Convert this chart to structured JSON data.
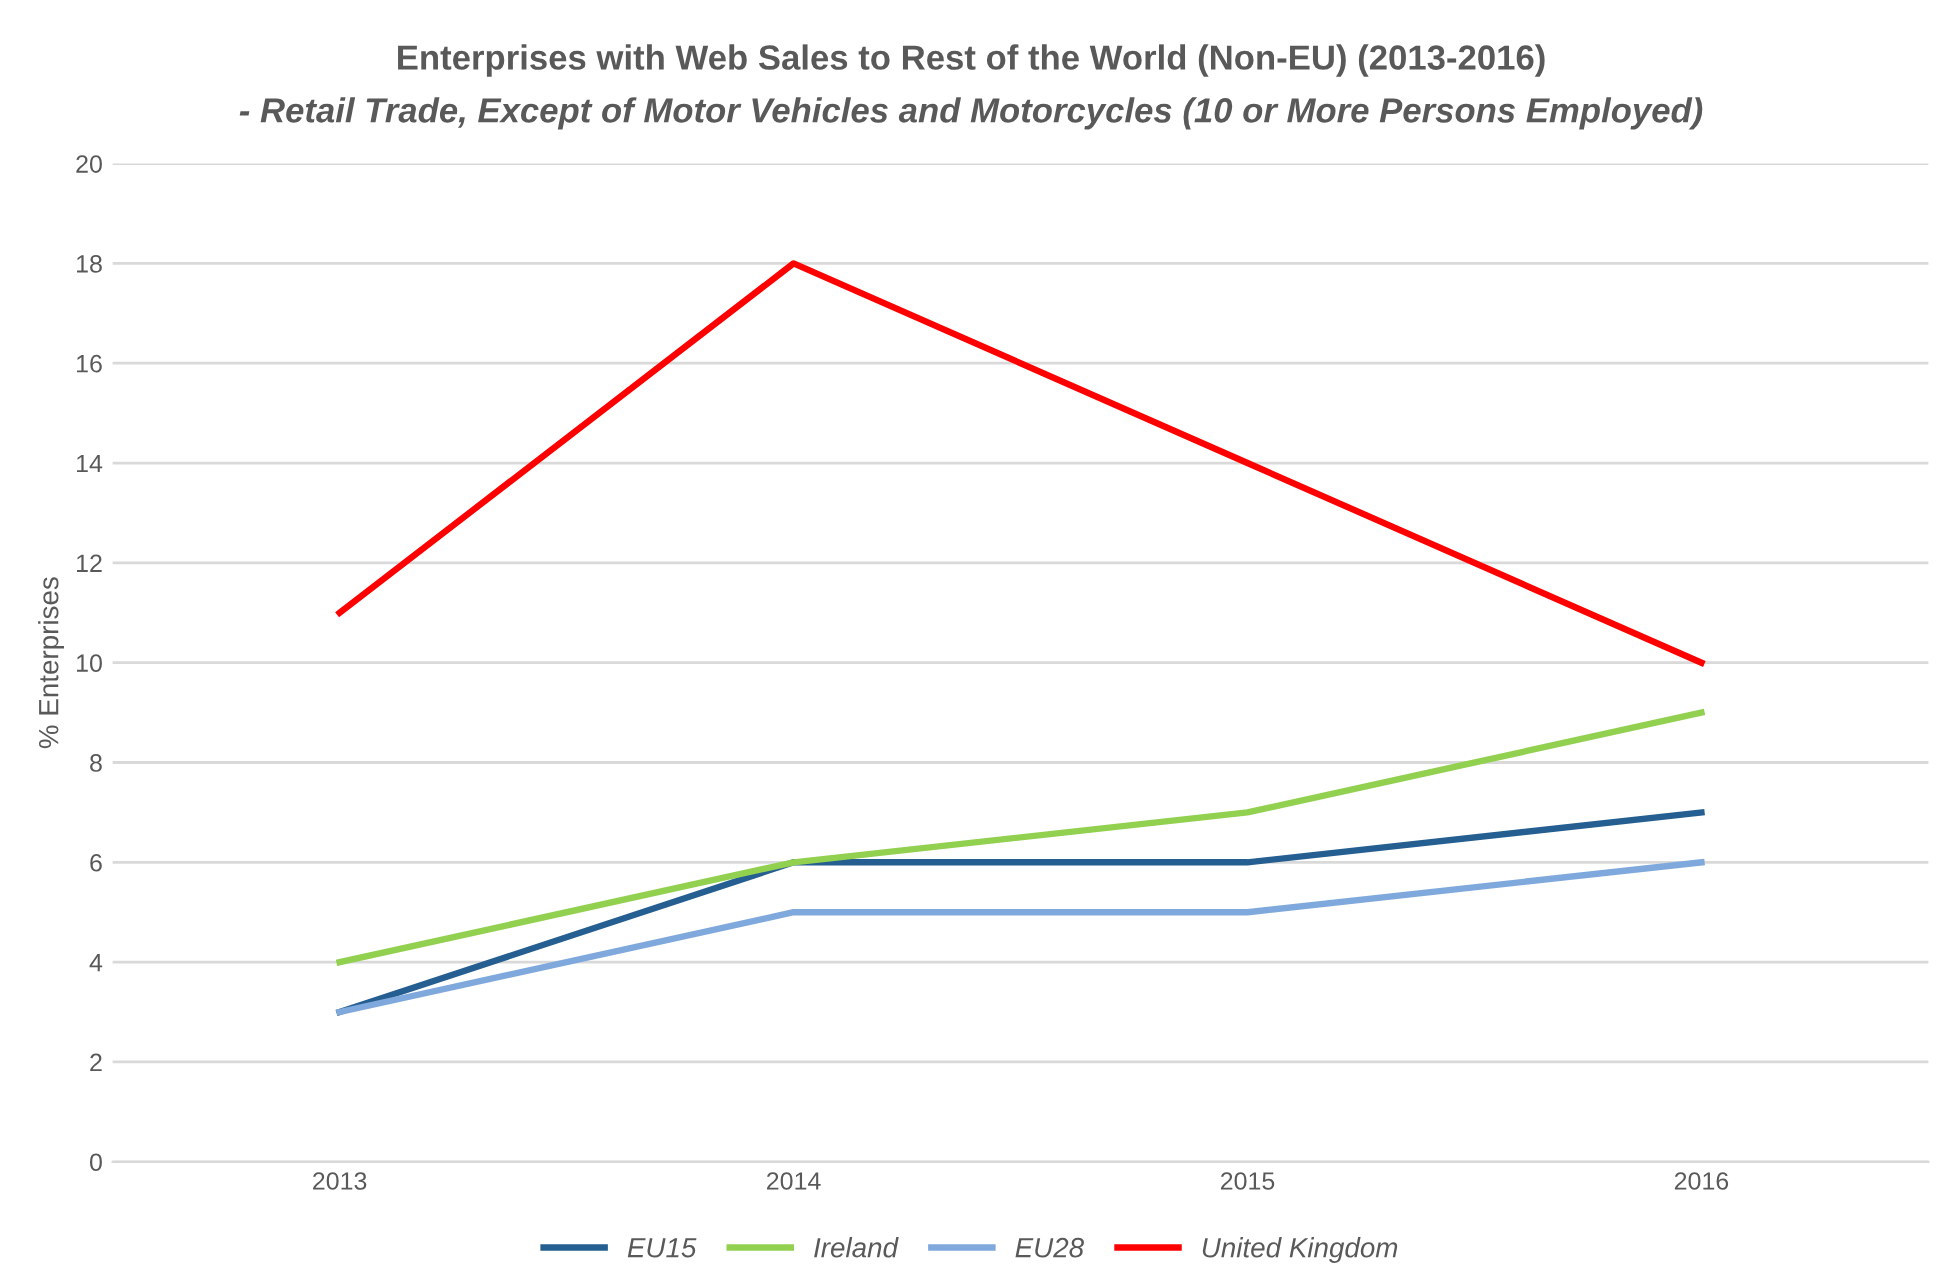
{
  "chart_data": {
    "type": "line",
    "title": "Enterprises with Web Sales to Rest of the World (Non-EU) (2013-2016)",
    "subtitle": "- Retail Trade, Except of Motor Vehicles and Motorcycles (10 or More Persons Employed)",
    "ylabel": "% Enterprises",
    "categories": [
      "2013",
      "2014",
      "2015",
      "2016"
    ],
    "series": [
      {
        "name": "EU15",
        "color": "#255e91",
        "values": [
          3,
          6,
          6,
          7
        ]
      },
      {
        "name": "Ireland",
        "color": "#92d050",
        "values": [
          4,
          6,
          7,
          9
        ]
      },
      {
        "name": "EU28",
        "color": "#7fa9dc",
        "values": [
          3,
          5,
          5,
          6
        ]
      },
      {
        "name": "United Kingdom",
        "color": "#ff0000",
        "values": [
          11,
          18,
          14,
          10
        ]
      }
    ],
    "ylim": [
      0,
      20
    ],
    "yticks": [
      0,
      2,
      4,
      6,
      8,
      10,
      12,
      14,
      16,
      18,
      20
    ],
    "grid": "y",
    "legend": "bottom",
    "marker": "none",
    "line_style": "solid"
  }
}
